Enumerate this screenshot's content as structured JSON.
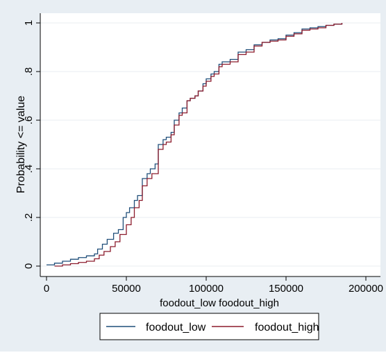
{
  "chart_data": {
    "type": "line",
    "xlabel": "foodout_low foodout_high",
    "ylabel": "Probability <= value",
    "xlim": [
      0,
      200000
    ],
    "ylim": [
      0,
      1
    ],
    "x_ticks": [
      0,
      50000,
      100000,
      150000,
      200000
    ],
    "y_ticks": [
      0,
      0.2,
      0.4,
      0.6,
      0.8,
      1
    ],
    "x_tick_labels": [
      "0",
      "50000",
      "100000",
      "150000",
      "200000"
    ],
    "y_tick_labels": [
      "0",
      ".2",
      ".4",
      ".6",
      ".8",
      "1"
    ],
    "grid": true,
    "legend_position": "bottom",
    "background": "#e8eef3",
    "plot_background": "#ffffff",
    "grid_color": "#e9eef2",
    "series": [
      {
        "name": "foodout_low",
        "color": "#1f4e79",
        "points": [
          [
            0,
            0.005
          ],
          [
            5000,
            0.012
          ],
          [
            10000,
            0.02
          ],
          [
            15000,
            0.028
          ],
          [
            20000,
            0.035
          ],
          [
            25000,
            0.042
          ],
          [
            30000,
            0.05
          ],
          [
            32000,
            0.07
          ],
          [
            35000,
            0.09
          ],
          [
            38000,
            0.11
          ],
          [
            42000,
            0.135
          ],
          [
            45000,
            0.15
          ],
          [
            48000,
            0.2
          ],
          [
            50000,
            0.22
          ],
          [
            52000,
            0.24
          ],
          [
            55000,
            0.27
          ],
          [
            57000,
            0.29
          ],
          [
            60000,
            0.36
          ],
          [
            63000,
            0.38
          ],
          [
            65000,
            0.4
          ],
          [
            68000,
            0.42
          ],
          [
            70000,
            0.5
          ],
          [
            73000,
            0.52
          ],
          [
            75000,
            0.53
          ],
          [
            78000,
            0.55
          ],
          [
            80000,
            0.6
          ],
          [
            83000,
            0.63
          ],
          [
            85000,
            0.65
          ],
          [
            88000,
            0.68
          ],
          [
            90000,
            0.69
          ],
          [
            93000,
            0.7
          ],
          [
            95000,
            0.72
          ],
          [
            98000,
            0.75
          ],
          [
            100000,
            0.77
          ],
          [
            103000,
            0.79
          ],
          [
            105000,
            0.8
          ],
          [
            108000,
            0.83
          ],
          [
            110000,
            0.84
          ],
          [
            115000,
            0.85
          ],
          [
            120000,
            0.88
          ],
          [
            125000,
            0.89
          ],
          [
            130000,
            0.91
          ],
          [
            135000,
            0.92
          ],
          [
            140000,
            0.93
          ],
          [
            145000,
            0.935
          ],
          [
            150000,
            0.95
          ],
          [
            155000,
            0.96
          ],
          [
            160000,
            0.975
          ],
          [
            165000,
            0.98
          ],
          [
            170000,
            0.985
          ],
          [
            175000,
            0.99
          ],
          [
            180000,
            0.995
          ],
          [
            185000,
            1.0
          ]
        ]
      },
      {
        "name": "foodout_high",
        "color": "#8b1a2b",
        "points": [
          [
            5000,
            0.0
          ],
          [
            10000,
            0.005
          ],
          [
            15000,
            0.01
          ],
          [
            20000,
            0.015
          ],
          [
            25000,
            0.02
          ],
          [
            30000,
            0.03
          ],
          [
            33000,
            0.045
          ],
          [
            36000,
            0.06
          ],
          [
            40000,
            0.08
          ],
          [
            43000,
            0.1
          ],
          [
            46000,
            0.13
          ],
          [
            50000,
            0.17
          ],
          [
            53000,
            0.2
          ],
          [
            55000,
            0.24
          ],
          [
            58000,
            0.27
          ],
          [
            60000,
            0.33
          ],
          [
            63000,
            0.36
          ],
          [
            66000,
            0.38
          ],
          [
            70000,
            0.48
          ],
          [
            73000,
            0.5
          ],
          [
            75000,
            0.51
          ],
          [
            78000,
            0.54
          ],
          [
            80000,
            0.58
          ],
          [
            83000,
            0.62
          ],
          [
            85000,
            0.63
          ],
          [
            88000,
            0.68
          ],
          [
            90000,
            0.69
          ],
          [
            93000,
            0.7
          ],
          [
            95000,
            0.72
          ],
          [
            98000,
            0.74
          ],
          [
            100000,
            0.76
          ],
          [
            103000,
            0.78
          ],
          [
            105000,
            0.79
          ],
          [
            108000,
            0.82
          ],
          [
            110000,
            0.83
          ],
          [
            115000,
            0.84
          ],
          [
            120000,
            0.87
          ],
          [
            125000,
            0.88
          ],
          [
            130000,
            0.905
          ],
          [
            135000,
            0.92
          ],
          [
            140000,
            0.925
          ],
          [
            145000,
            0.93
          ],
          [
            150000,
            0.945
          ],
          [
            155000,
            0.955
          ],
          [
            160000,
            0.97
          ],
          [
            165000,
            0.975
          ],
          [
            170000,
            0.98
          ],
          [
            175000,
            0.99
          ],
          [
            180000,
            0.995
          ],
          [
            185000,
            1.0
          ]
        ]
      }
    ]
  }
}
